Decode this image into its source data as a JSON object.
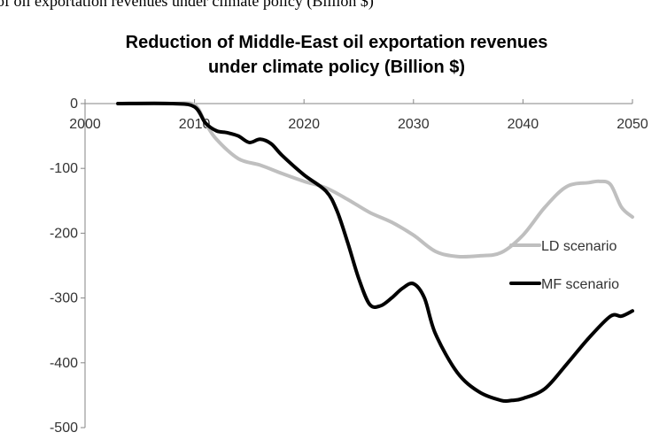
{
  "caption": "of oil exportation revenues under climate policy (Billion $)",
  "chart_data": {
    "type": "line",
    "title_lines": [
      "Reduction of Middle-East oil exportation revenues",
      "under climate policy (Billion $)"
    ],
    "xlabel": "",
    "ylabel": "",
    "xlim": [
      2000,
      2050
    ],
    "ylim": [
      -500,
      0
    ],
    "x_ticks": [
      2000,
      2010,
      2020,
      2030,
      2040,
      2050
    ],
    "y_ticks": [
      0,
      -100,
      -200,
      -300,
      -400,
      -500
    ],
    "grid": false,
    "legend_position": "right",
    "series": [
      {
        "name": "LD scenario",
        "color": "#bfbfbf",
        "x": [
          2003,
          2008,
          2010,
          2011,
          2012,
          2014,
          2016,
          2018,
          2020,
          2022,
          2024,
          2026,
          2028,
          2030,
          2032,
          2034,
          2036,
          2038,
          2040,
          2042,
          2044,
          2046,
          2047,
          2048,
          2049,
          2050
        ],
        "y": [
          0,
          0,
          -2,
          -30,
          -55,
          -85,
          -95,
          -108,
          -120,
          -130,
          -148,
          -168,
          -183,
          -203,
          -228,
          -236,
          -235,
          -230,
          -203,
          -160,
          -128,
          -122,
          -120,
          -125,
          -160,
          -175
        ]
      },
      {
        "name": "MF scenario",
        "color": "#000000",
        "x": [
          2003,
          2008,
          2010,
          2011,
          2012,
          2013,
          2014,
          2015,
          2016,
          2017,
          2018,
          2020,
          2022,
          2023,
          2024,
          2025,
          2026,
          2027,
          2028,
          2029,
          2030,
          2031,
          2032,
          2034,
          2036,
          2038,
          2039,
          2040,
          2042,
          2044,
          2046,
          2048,
          2049,
          2050
        ],
        "y": [
          0,
          0,
          -5,
          -30,
          -42,
          -45,
          -50,
          -60,
          -55,
          -62,
          -80,
          -110,
          -135,
          -165,
          -215,
          -270,
          -310,
          -312,
          -300,
          -285,
          -278,
          -300,
          -355,
          -415,
          -445,
          -458,
          -458,
          -455,
          -440,
          -402,
          -362,
          -328,
          -328,
          -320
        ]
      }
    ]
  }
}
